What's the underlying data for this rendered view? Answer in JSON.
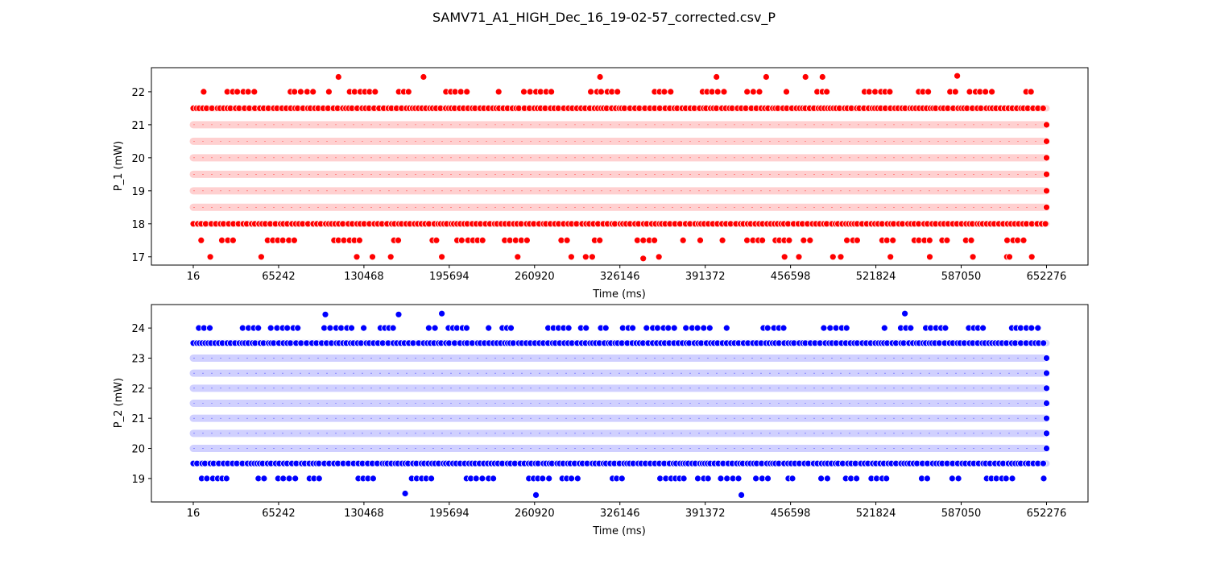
{
  "figure_title": "SAMV71_A1_HIGH_Dec_16_19-02-57_corrected.csv_P",
  "chart_data": [
    {
      "type": "scatter",
      "xlabel": "Time (ms)",
      "ylabel": "P_1 (mW)",
      "xlim": [
        -32000,
        684000
      ],
      "ylim": [
        16.75,
        22.73
      ],
      "x_ticks": [
        16,
        65242,
        130468,
        195694,
        260920,
        326146,
        391372,
        456598,
        521824,
        587050,
        652276
      ],
      "y_ticks": [
        17,
        18,
        19,
        20,
        21,
        22
      ],
      "color": "#ff0000",
      "dense_levels": [
        18.5,
        19.0,
        19.5,
        20.0,
        20.5,
        21.0
      ],
      "medium_levels": [
        18.0,
        21.5
      ],
      "sparse_levels": [
        17.5,
        22.0
      ],
      "outliers": [
        {
          "x": 13000,
          "y": 17.0
        },
        {
          "x": 52000,
          "y": 17.0
        },
        {
          "x": 125000,
          "y": 17.0
        },
        {
          "x": 137000,
          "y": 17.0
        },
        {
          "x": 151000,
          "y": 17.0
        },
        {
          "x": 190000,
          "y": 17.0
        },
        {
          "x": 248000,
          "y": 17.0
        },
        {
          "x": 289000,
          "y": 17.0
        },
        {
          "x": 300000,
          "y": 17.0
        },
        {
          "x": 305000,
          "y": 17.0
        },
        {
          "x": 344000,
          "y": 16.95
        },
        {
          "x": 356000,
          "y": 17.0
        },
        {
          "x": 452000,
          "y": 17.0
        },
        {
          "x": 463000,
          "y": 17.0
        },
        {
          "x": 489000,
          "y": 17.0
        },
        {
          "x": 495000,
          "y": 17.0
        },
        {
          "x": 533000,
          "y": 17.0
        },
        {
          "x": 563000,
          "y": 17.0
        },
        {
          "x": 596000,
          "y": 17.0
        },
        {
          "x": 622000,
          "y": 17.0
        },
        {
          "x": 624000,
          "y": 17.0
        },
        {
          "x": 641000,
          "y": 17.0
        },
        {
          "x": 111000,
          "y": 22.45
        },
        {
          "x": 176000,
          "y": 22.45
        },
        {
          "x": 311000,
          "y": 22.45
        },
        {
          "x": 400000,
          "y": 22.45
        },
        {
          "x": 438000,
          "y": 22.45
        },
        {
          "x": 468000,
          "y": 22.45
        },
        {
          "x": 481000,
          "y": 22.45
        },
        {
          "x": 584000,
          "y": 22.48
        }
      ]
    },
    {
      "type": "scatter",
      "xlabel": "Time (ms)",
      "ylabel": "P_2 (mW)",
      "xlim": [
        -32000,
        684000
      ],
      "ylim": [
        18.22,
        24.78
      ],
      "x_ticks": [
        16,
        65242,
        130468,
        195694,
        260920,
        326146,
        391372,
        456598,
        521824,
        587050,
        652276
      ],
      "y_ticks": [
        19,
        20,
        21,
        22,
        23,
        24
      ],
      "color": "#0000ff",
      "dense_levels": [
        20.0,
        20.5,
        21.0,
        21.5,
        22.0,
        22.5,
        23.0
      ],
      "medium_levels": [
        19.5,
        23.5
      ],
      "sparse_levels": [
        19.0,
        24.0
      ],
      "outliers": [
        {
          "x": 101000,
          "y": 24.45
        },
        {
          "x": 157000,
          "y": 24.45
        },
        {
          "x": 190000,
          "y": 24.48
        },
        {
          "x": 544000,
          "y": 24.48
        },
        {
          "x": 162000,
          "y": 18.5
        },
        {
          "x": 262000,
          "y": 18.45
        },
        {
          "x": 419000,
          "y": 18.45
        }
      ]
    }
  ]
}
